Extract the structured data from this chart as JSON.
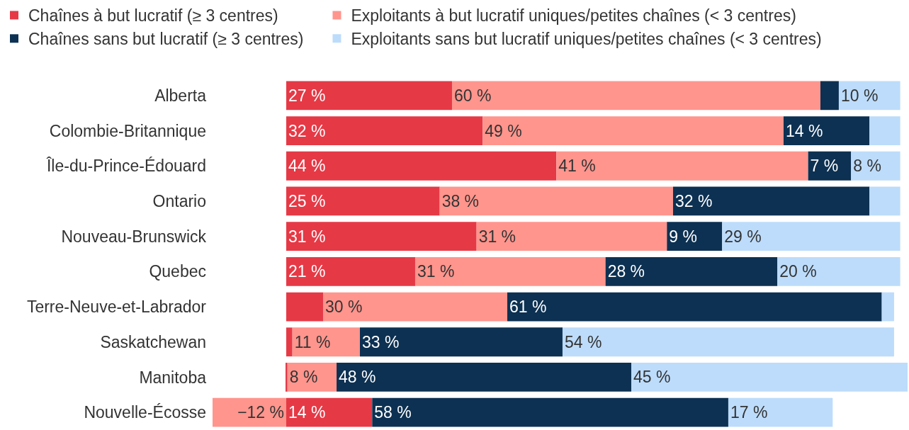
{
  "chart_data": {
    "type": "bar",
    "orientation": "horizontal",
    "stacked": true,
    "legend": "top",
    "tick_labels": "y",
    "categories": [
      "Alberta",
      "Colombie-Britannique",
      "Île-du-Prince-Édouard",
      "Ontario",
      "Nouveau-Brunswick",
      "Quebec",
      "Terre-Neuve-et-Labrador",
      "Saskatchewan",
      "Manitoba",
      "Nouvelle-Écosse"
    ],
    "series": [
      {
        "name": "Chaînes à but lucratif (≥ 3 centres)",
        "color": "#e63946",
        "values": [
          27,
          32,
          44,
          25,
          31,
          21,
          6,
          1,
          0.2,
          14
        ],
        "value_labels": [
          "27 %",
          "32 %",
          "44 %",
          "25 %",
          "31 %",
          "21 %",
          null,
          null,
          null,
          "14 %"
        ]
      },
      {
        "name": "Exploitants à but lucratif uniques/petites chaînes (< 3 centres)",
        "color": "#ff958d",
        "values": [
          60,
          49,
          41,
          38,
          31,
          31,
          30,
          11,
          8,
          -12
        ],
        "value_labels": [
          "60 %",
          "49 %",
          "41 %",
          "38 %",
          "31 %",
          "31 %",
          "30 %",
          "11 %",
          "8 %",
          "−12 %"
        ]
      },
      {
        "name": "Chaînes sans but lucratif (≥ 3 centres)",
        "color": "#0d3152",
        "values": [
          3,
          14,
          7,
          32,
          9,
          28,
          61,
          33,
          48,
          58
        ],
        "value_labels": [
          null,
          "14 %",
          "7 %",
          "32 %",
          "9 %",
          "28 %",
          "61 %",
          "33 %",
          "48 %",
          "58 %"
        ]
      },
      {
        "name": "Exploitants sans but lucratif uniques/petites chaînes (< 3 centres)",
        "color": "#bddcfb",
        "values": [
          10,
          5,
          8,
          5,
          29,
          20,
          2,
          54,
          45,
          17
        ],
        "value_labels": [
          "10 %",
          null,
          "8 %",
          null,
          "29 %",
          "20 %",
          null,
          "54 %",
          "45 %",
          "17 %"
        ]
      }
    ]
  }
}
